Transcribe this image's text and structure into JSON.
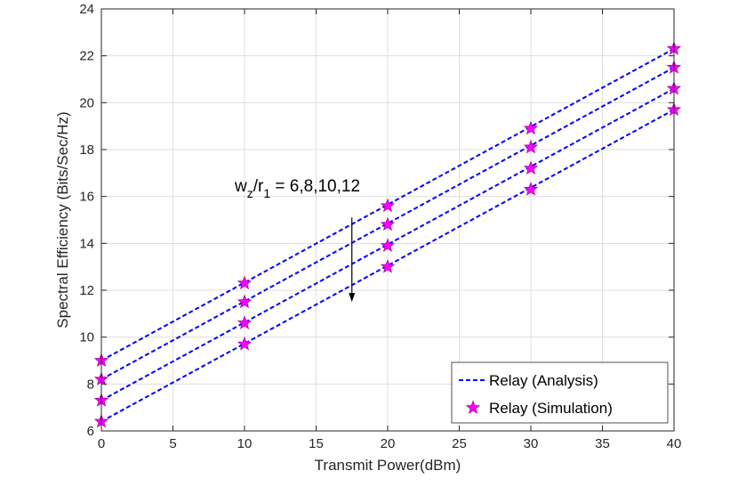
{
  "chart_data": {
    "type": "line",
    "title": "",
    "xlabel": "Transmit Power(dBm)",
    "ylabel": "Spectral Efficiency (Bits/Sec/Hz)",
    "xlim": [
      0,
      40
    ],
    "ylim": [
      6,
      24
    ],
    "xticks": [
      0,
      5,
      10,
      15,
      20,
      25,
      30,
      35,
      40
    ],
    "yticks": [
      6,
      8,
      10,
      12,
      14,
      16,
      18,
      20,
      22,
      24
    ],
    "grid": true,
    "legend_position": "bottom-right",
    "colors": {
      "analysis": "#0000ff",
      "simulation": "#ff00ff",
      "simulation_edge": "#b000b0",
      "axis": "#262626",
      "grid": "#d9d9d9"
    },
    "x": [
      0,
      10,
      20,
      30,
      40
    ],
    "analysis_lines": [
      {
        "name": "w_z/r_1 = 6",
        "x": [
          0,
          40
        ],
        "y": [
          9.0,
          22.3
        ]
      },
      {
        "name": "w_z/r_1 = 8",
        "x": [
          0,
          40
        ],
        "y": [
          8.2,
          21.5
        ]
      },
      {
        "name": "w_z/r_1 = 10",
        "x": [
          0,
          40
        ],
        "y": [
          7.3,
          20.6
        ]
      },
      {
        "name": "w_z/r_1 = 12",
        "x": [
          0,
          40
        ],
        "y": [
          6.4,
          19.7
        ]
      }
    ],
    "series": [
      {
        "name": "w_z/r_1 = 6",
        "values": [
          9.0,
          12.3,
          15.6,
          18.9,
          22.3
        ]
      },
      {
        "name": "w_z/r_1 = 8",
        "values": [
          8.2,
          11.5,
          14.8,
          18.1,
          21.5
        ]
      },
      {
        "name": "w_z/r_1 = 10",
        "values": [
          7.3,
          10.6,
          13.9,
          17.2,
          20.6
        ]
      },
      {
        "name": "w_z/r_1 = 12",
        "values": [
          6.4,
          9.7,
          13.0,
          16.3,
          19.7
        ]
      }
    ],
    "legend": [
      "Relay (Analysis)",
      "Relay (Simulation)"
    ],
    "annotation": {
      "w": "w",
      "w_sub": "z",
      "slash": "/r",
      "r_sub": "1",
      "rest": " = 6,8,10,12",
      "arrow_x": 17.5,
      "arrow_from_y": 15.1,
      "arrow_to_y": 11.5
    }
  }
}
